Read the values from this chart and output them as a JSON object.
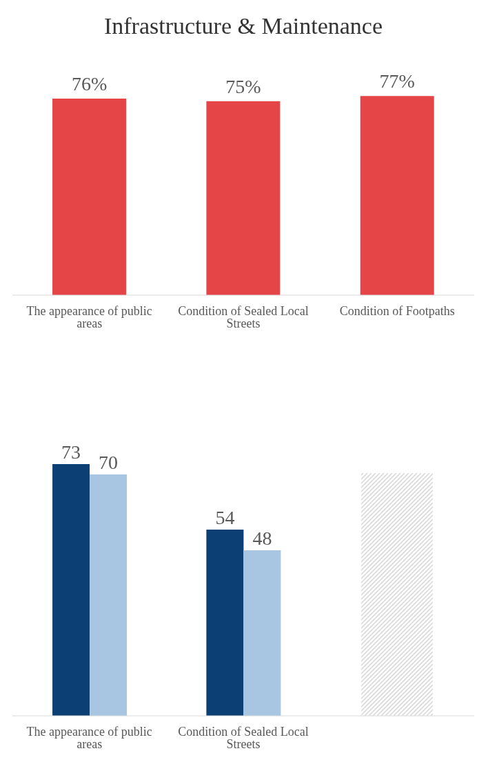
{
  "chart_data": [
    {
      "type": "bar",
      "title": "Infrastructure & Maintenance",
      "categories": [
        "The appearance of public areas",
        "Condition of Sealed Local Streets",
        "Condition of Footpaths"
      ],
      "values": [
        76,
        75,
        77
      ],
      "value_labels": [
        "76%",
        "75%",
        "77%"
      ],
      "color": "#e64547"
    },
    {
      "type": "bar",
      "categories": [
        "The appearance of public areas",
        "Condition of Sealed Local Streets",
        null
      ],
      "series": [
        {
          "color": "#0c3f73",
          "values": [
            73,
            54,
            null
          ]
        },
        {
          "color": "#a8c6e2",
          "values": [
            70,
            48,
            null
          ]
        }
      ],
      "data_labels": true
    }
  ]
}
